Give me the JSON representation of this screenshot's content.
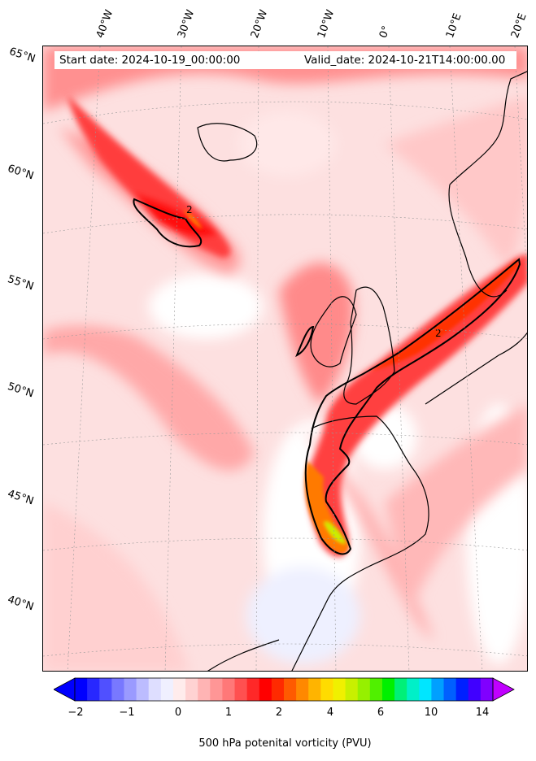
{
  "header": {
    "start_date": "Start date: 2024-10-19_00:00:00",
    "valid_date": "Valid_date: 2024-10-21T14:00:00.00"
  },
  "longitude_labels": [
    "40°W",
    "30°W",
    "20°W",
    "10°W",
    "0°",
    "10°E",
    "20°E"
  ],
  "latitude_labels": [
    "65°N",
    "60°N",
    "55°N",
    "50°N",
    "45°N",
    "40°N"
  ],
  "contour_label": "2",
  "colorbar": {
    "label": "500 hPa potenital vorticity (PVU)",
    "tick_labels": [
      "−2",
      "−1",
      "0",
      "1",
      "2",
      "4",
      "6",
      "10",
      "14"
    ],
    "colors": [
      "#0000ff",
      "#2828ff",
      "#5050ff",
      "#7878ff",
      "#9a9aff",
      "#bcbcff",
      "#dedeff",
      "#f0f0ff",
      "#ffecec",
      "#ffd2d2",
      "#ffb4b4",
      "#ff9696",
      "#ff7878",
      "#ff5050",
      "#ff2828",
      "#ff0000",
      "#ff2a00",
      "#ff5a00",
      "#ff8800",
      "#ffb400",
      "#ffdc00",
      "#f0f000",
      "#c8f000",
      "#96f000",
      "#50f000",
      "#00f000",
      "#00f078",
      "#00f0c8",
      "#00e6ff",
      "#00a0ff",
      "#0060ff",
      "#0020ff",
      "#4000ff",
      "#8000ff"
    ],
    "extend_low_color": "#0000ff",
    "extend_high_color": "#c000ff"
  }
}
